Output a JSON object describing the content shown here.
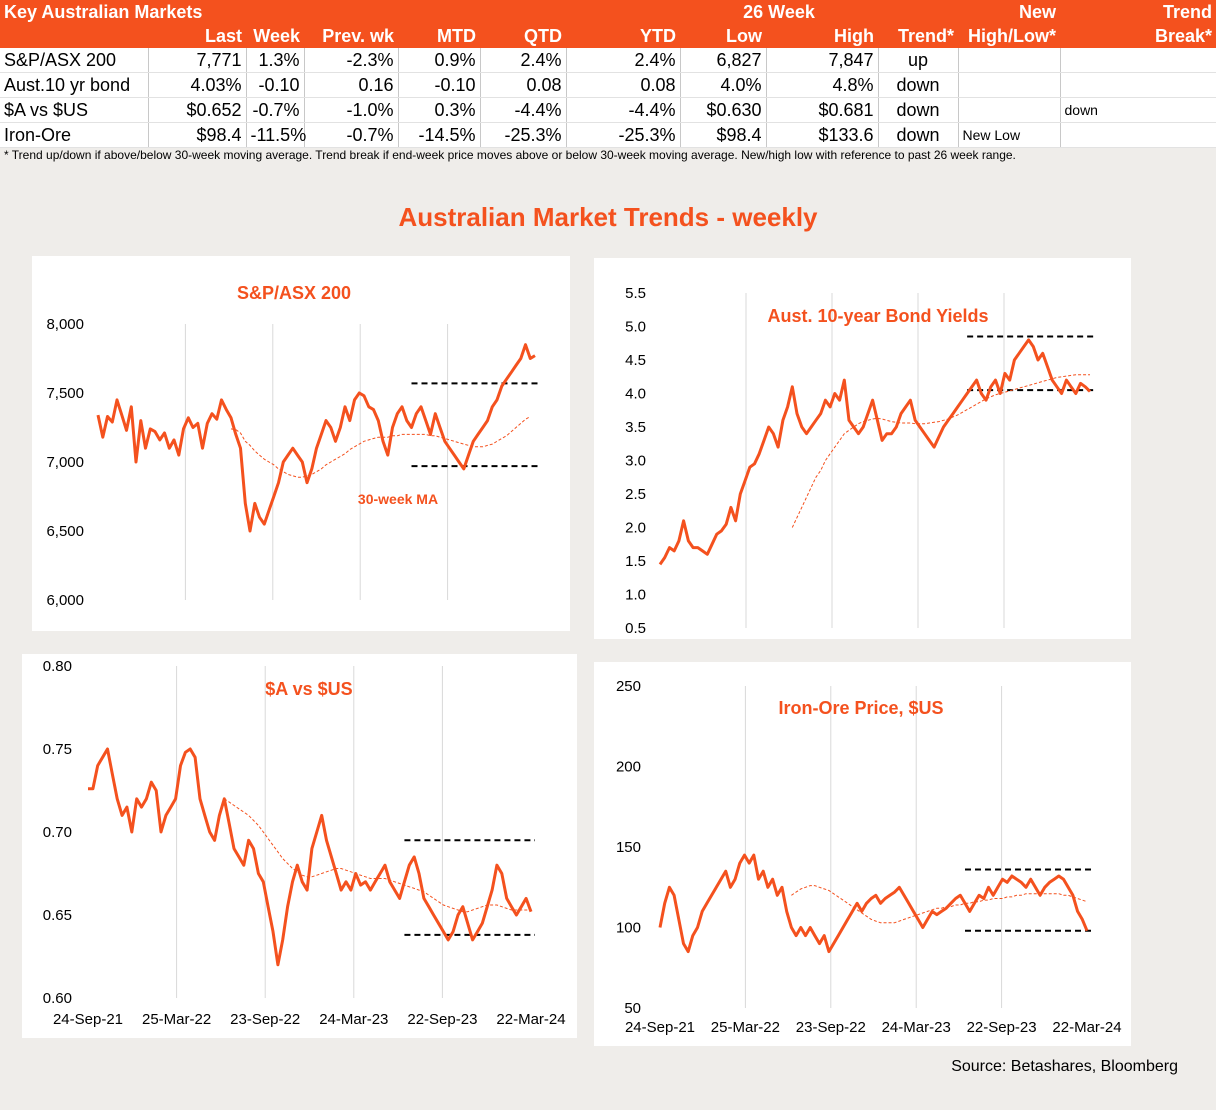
{
  "table": {
    "header1": [
      "Key Australian Markets",
      "",
      "",
      "",
      "",
      "",
      "",
      "26 Week",
      "",
      "",
      "New",
      "Trend"
    ],
    "header2": [
      "",
      "Last",
      "Week",
      "Prev. wk",
      "MTD",
      "QTD",
      "YTD",
      "Low",
      "High",
      "Trend*",
      "High/Low*",
      "Break*"
    ],
    "rows": [
      {
        "name": "S&P/ASX 200",
        "last": "7,771",
        "week": "1.3%",
        "prev": "-2.3%",
        "mtd": "0.9%",
        "qtd": "2.4%",
        "ytd": "2.4%",
        "low": "6,827",
        "high": "7,847",
        "trend": "up",
        "newhl": "",
        "brk": ""
      },
      {
        "name": "Aust.10 yr bond",
        "last": "4.03%",
        "week": "-0.10",
        "prev": "0.16",
        "mtd": "-0.10",
        "qtd": "0.08",
        "ytd": "0.08",
        "low": "4.0%",
        "high": "4.8%",
        "trend": "down",
        "newhl": "",
        "brk": ""
      },
      {
        "name": "$A vs $US",
        "last": "$0.652",
        "week": "-0.7%",
        "prev": "-1.0%",
        "mtd": "0.3%",
        "qtd": "-4.4%",
        "ytd": "-4.4%",
        "low": "$0.630",
        "high": "$0.681",
        "trend": "down",
        "newhl": "",
        "brk": "down"
      },
      {
        "name": "Iron-Ore",
        "last": "$98.4",
        "week": "-11.5%",
        "prev": "-0.7%",
        "mtd": "-14.5%",
        "qtd": "-25.3%",
        "ytd": "-25.3%",
        "low": "$98.4",
        "high": "$133.6",
        "trend": "down",
        "newhl": "New Low",
        "brk": ""
      }
    ],
    "footnote": "*  Trend up/down if above/below 30-week moving average. Trend break if end-week price moves above or below 30-week moving average.  New/high low with reference to past 26 week range."
  },
  "main_title": "Australian Market Trends - weekly",
  "source": "Source:  Betashares, Bloomberg",
  "colors": {
    "accent": "#f4511e",
    "ma": "#f4511e",
    "band": "#000000"
  },
  "chart_data": [
    {
      "type": "line",
      "title": "S&P/ASX 200",
      "ylim": [
        6000,
        8000
      ],
      "yticks": [
        6000,
        6500,
        7000,
        7500,
        8000
      ],
      "ytick_labels": [
        "6,000",
        "6,500",
        "7,000",
        "7,500",
        "8,000"
      ],
      "x_start": "2021-09-24",
      "x_end": "2024-03-22",
      "grid_x": [
        "2022-03-25",
        "2022-09-23",
        "2023-03-24",
        "2023-09-22"
      ],
      "series": [
        {
          "role": "price",
          "values": [
            7340,
            7180,
            7330,
            7290,
            7450,
            7340,
            7230,
            7400,
            7000,
            7300,
            7100,
            7240,
            7220,
            7160,
            7210,
            7100,
            7160,
            7050,
            7240,
            7320,
            7250,
            7280,
            7100,
            7280,
            7350,
            7310,
            7450,
            7380,
            7320,
            7200,
            7100,
            6700,
            6500,
            6700,
            6600,
            6550,
            6650,
            6750,
            6850,
            7000,
            7050,
            7100,
            7050,
            7000,
            6850,
            6950,
            7100,
            7200,
            7300,
            7250,
            7150,
            7250,
            7400,
            7300,
            7450,
            7500,
            7480,
            7400,
            7380,
            7300,
            7150,
            7050,
            7250,
            7350,
            7400,
            7300,
            7250,
            7350,
            7400,
            7300,
            7200,
            7350,
            7250,
            7150,
            7100,
            7050,
            7000,
            6950,
            7050,
            7150,
            7200,
            7250,
            7300,
            7400,
            7450,
            7550,
            7600,
            7650,
            7700,
            7750,
            7850,
            7750,
            7771
          ]
        },
        {
          "role": "ma",
          "name": "30-week MA",
          "values": [
            null,
            null,
            null,
            null,
            null,
            null,
            null,
            null,
            null,
            null,
            null,
            null,
            null,
            null,
            null,
            null,
            null,
            null,
            null,
            null,
            null,
            null,
            null,
            null,
            null,
            null,
            null,
            null,
            7240,
            7235,
            7210,
            7150,
            7120,
            7080,
            7050,
            7020,
            7000,
            6980,
            6950,
            6930,
            6910,
            6900,
            6890,
            6890,
            6900,
            6910,
            6930,
            6950,
            6980,
            7000,
            7020,
            7040,
            7060,
            7090,
            7110,
            7130,
            7150,
            7160,
            7170,
            7180,
            7180,
            7180,
            7190,
            7190,
            7200,
            7200,
            7200,
            7200,
            7200,
            7200,
            7190,
            7190,
            7180,
            7170,
            7160,
            7150,
            7140,
            7130,
            7120,
            7110,
            7110,
            7110,
            7120,
            7130,
            7150,
            7170,
            7190,
            7220,
            7250,
            7280,
            7310,
            7330
          ]
        }
      ],
      "band": {
        "low": 6970,
        "high": 7570
      },
      "annotation": "30-week MA"
    },
    {
      "type": "line",
      "title": "Aust. 10-year Bond Yields",
      "ylim": [
        0.5,
        5.5
      ],
      "yticks": [
        0.5,
        1.0,
        1.5,
        2.0,
        2.5,
        3.0,
        3.5,
        4.0,
        4.5,
        5.0,
        5.5
      ],
      "ytick_labels": [
        "0.5",
        "1.0",
        "1.5",
        "2.0",
        "2.5",
        "3.0",
        "3.5",
        "4.0",
        "4.5",
        "5.0",
        "5.5"
      ],
      "x_start": "2021-09-24",
      "x_end": "2024-03-22",
      "grid_x": [
        "2022-03-25",
        "2022-09-23",
        "2023-03-24",
        "2023-09-22"
      ],
      "series": [
        {
          "role": "price",
          "values": [
            1.45,
            1.55,
            1.7,
            1.65,
            1.8,
            2.1,
            1.8,
            1.7,
            1.7,
            1.65,
            1.6,
            1.75,
            1.9,
            1.95,
            2.05,
            2.3,
            2.1,
            2.5,
            2.7,
            2.9,
            2.95,
            3.1,
            3.3,
            3.5,
            3.4,
            3.2,
            3.6,
            3.8,
            4.1,
            3.7,
            3.5,
            3.4,
            3.5,
            3.6,
            3.7,
            3.9,
            3.8,
            4.0,
            3.9,
            4.2,
            3.6,
            3.5,
            3.4,
            3.5,
            3.7,
            3.9,
            3.6,
            3.3,
            3.4,
            3.4,
            3.5,
            3.7,
            3.8,
            3.9,
            3.6,
            3.5,
            3.4,
            3.3,
            3.2,
            3.35,
            3.5,
            3.6,
            3.7,
            3.8,
            3.9,
            4.0,
            4.1,
            4.2,
            4.0,
            3.9,
            4.1,
            4.2,
            4.0,
            4.3,
            4.2,
            4.5,
            4.6,
            4.7,
            4.8,
            4.7,
            4.5,
            4.6,
            4.4,
            4.2,
            4.1,
            4.0,
            4.2,
            4.1,
            4.0,
            4.15,
            4.1,
            4.03
          ]
        },
        {
          "role": "ma",
          "name": "30-week MA",
          "values": [
            null,
            null,
            null,
            null,
            null,
            null,
            null,
            null,
            null,
            null,
            null,
            null,
            null,
            null,
            null,
            null,
            null,
            null,
            null,
            null,
            null,
            null,
            null,
            null,
            null,
            null,
            null,
            null,
            2.0,
            2.15,
            2.3,
            2.45,
            2.6,
            2.75,
            2.85,
            3.0,
            3.1,
            3.2,
            3.3,
            3.4,
            3.45,
            3.5,
            3.55,
            3.58,
            3.6,
            3.62,
            3.63,
            3.62,
            3.6,
            3.58,
            3.57,
            3.56,
            3.56,
            3.56,
            3.55,
            3.55,
            3.55,
            3.56,
            3.57,
            3.58,
            3.6,
            3.62,
            3.65,
            3.68,
            3.72,
            3.76,
            3.8,
            3.84,
            3.88,
            3.92,
            3.95,
            3.98,
            4.0,
            4.02,
            4.04,
            4.06,
            4.08,
            4.1,
            4.12,
            4.14,
            4.16,
            4.18,
            4.2,
            4.22,
            4.24,
            4.25,
            4.26,
            4.27,
            4.28,
            4.28,
            4.28,
            4.28
          ]
        }
      ],
      "band": {
        "low": 4.05,
        "high": 4.85
      }
    },
    {
      "type": "line",
      "title": "$A vs $US",
      "ylim": [
        0.6,
        0.8
      ],
      "yticks": [
        0.6,
        0.65,
        0.7,
        0.75,
        0.8
      ],
      "ytick_labels": [
        "0.60",
        "0.65",
        "0.70",
        "0.75",
        "0.80"
      ],
      "x_start": "2021-09-24",
      "x_end": "2024-03-22",
      "xtick_labels": [
        "24-Sep-21",
        "25-Mar-22",
        "23-Sep-22",
        "24-Mar-23",
        "22-Sep-23",
        "22-Mar-24"
      ],
      "grid_x": [
        "2022-03-25",
        "2022-09-23",
        "2023-03-24",
        "2023-09-22"
      ],
      "series": [
        {
          "role": "price",
          "values": [
            0.726,
            0.726,
            0.74,
            0.745,
            0.75,
            0.735,
            0.72,
            0.71,
            0.715,
            0.7,
            0.72,
            0.715,
            0.72,
            0.73,
            0.725,
            0.7,
            0.71,
            0.715,
            0.72,
            0.74,
            0.748,
            0.75,
            0.745,
            0.72,
            0.71,
            0.7,
            0.695,
            0.71,
            0.72,
            0.705,
            0.69,
            0.685,
            0.68,
            0.695,
            0.69,
            0.675,
            0.67,
            0.655,
            0.64,
            0.62,
            0.635,
            0.655,
            0.67,
            0.68,
            0.67,
            0.665,
            0.69,
            0.7,
            0.71,
            0.695,
            0.685,
            0.675,
            0.665,
            0.67,
            0.665,
            0.675,
            0.668,
            0.67,
            0.665,
            0.67,
            0.675,
            0.68,
            0.67,
            0.665,
            0.66,
            0.67,
            0.68,
            0.685,
            0.675,
            0.66,
            0.655,
            0.65,
            0.645,
            0.64,
            0.635,
            0.64,
            0.65,
            0.655,
            0.645,
            0.635,
            0.64,
            0.645,
            0.655,
            0.665,
            0.68,
            0.675,
            0.66,
            0.655,
            0.65,
            0.655,
            0.66,
            0.652
          ]
        },
        {
          "role": "ma",
          "name": "30-week MA",
          "values": [
            null,
            null,
            null,
            null,
            null,
            null,
            null,
            null,
            null,
            null,
            null,
            null,
            null,
            null,
            null,
            null,
            null,
            null,
            null,
            null,
            null,
            null,
            null,
            null,
            null,
            null,
            null,
            null,
            0.72,
            0.718,
            0.716,
            0.714,
            0.712,
            0.71,
            0.707,
            0.704,
            0.7,
            0.696,
            0.692,
            0.688,
            0.684,
            0.681,
            0.678,
            0.676,
            0.674,
            0.673,
            0.673,
            0.674,
            0.675,
            0.676,
            0.677,
            0.678,
            0.678,
            0.677,
            0.676,
            0.675,
            0.674,
            0.673,
            0.672,
            0.672,
            0.672,
            0.672,
            0.671,
            0.67,
            0.669,
            0.668,
            0.667,
            0.666,
            0.665,
            0.664,
            0.662,
            0.66,
            0.658,
            0.656,
            0.655,
            0.654,
            0.653,
            0.652,
            0.652,
            0.653,
            0.654,
            0.655,
            0.656,
            0.656,
            0.656,
            0.655,
            0.654,
            0.653,
            0.653,
            0.653,
            0.653,
            0.653
          ]
        }
      ],
      "band": {
        "low": 0.638,
        "high": 0.695
      }
    },
    {
      "type": "line",
      "title": "Iron-Ore Price, $US",
      "ylim": [
        50,
        250
      ],
      "yticks": [
        50,
        100,
        150,
        200,
        250
      ],
      "ytick_labels": [
        "50",
        "100",
        "150",
        "200",
        "250"
      ],
      "x_start": "2021-09-24",
      "x_end": "2024-03-22",
      "xtick_labels": [
        "24-Sep-21",
        "25-Mar-22",
        "23-Sep-22",
        "24-Mar-23",
        "22-Sep-23",
        "22-Mar-24"
      ],
      "grid_x": [
        "2022-03-25",
        "2022-09-23",
        "2023-03-24",
        "2023-09-22"
      ],
      "series": [
        {
          "role": "price",
          "values": [
            100,
            115,
            125,
            120,
            105,
            90,
            85,
            95,
            100,
            110,
            115,
            120,
            125,
            130,
            135,
            125,
            130,
            140,
            145,
            140,
            145,
            130,
            135,
            125,
            130,
            120,
            125,
            110,
            100,
            95,
            100,
            95,
            100,
            95,
            90,
            95,
            85,
            90,
            95,
            100,
            105,
            110,
            115,
            110,
            115,
            118,
            120,
            115,
            118,
            120,
            122,
            125,
            120,
            115,
            110,
            105,
            100,
            105,
            110,
            108,
            110,
            112,
            115,
            118,
            120,
            115,
            110,
            115,
            120,
            118,
            125,
            120,
            125,
            130,
            128,
            132,
            130,
            128,
            125,
            130,
            125,
            120,
            125,
            128,
            130,
            132,
            130,
            125,
            120,
            110,
            105,
            98
          ]
        },
        {
          "role": "ma",
          "name": "30-week MA",
          "values": [
            null,
            null,
            null,
            null,
            null,
            null,
            null,
            null,
            null,
            null,
            null,
            null,
            null,
            null,
            null,
            null,
            null,
            null,
            null,
            null,
            null,
            null,
            null,
            null,
            null,
            null,
            null,
            null,
            120,
            122,
            124,
            125,
            126,
            126,
            125,
            124,
            123,
            121,
            119,
            117,
            115,
            113,
            111,
            109,
            107,
            105,
            104,
            103,
            103,
            103,
            103,
            104,
            105,
            106,
            107,
            108,
            109,
            110,
            111,
            112,
            112,
            113,
            113,
            114,
            114,
            115,
            115,
            116,
            116,
            117,
            117,
            118,
            118,
            118,
            119,
            119,
            120,
            120,
            121,
            121,
            121,
            121,
            121,
            121,
            121,
            121,
            120,
            120,
            119,
            118,
            117,
            116
          ]
        }
      ],
      "band": {
        "low": 98,
        "high": 136
      }
    }
  ]
}
